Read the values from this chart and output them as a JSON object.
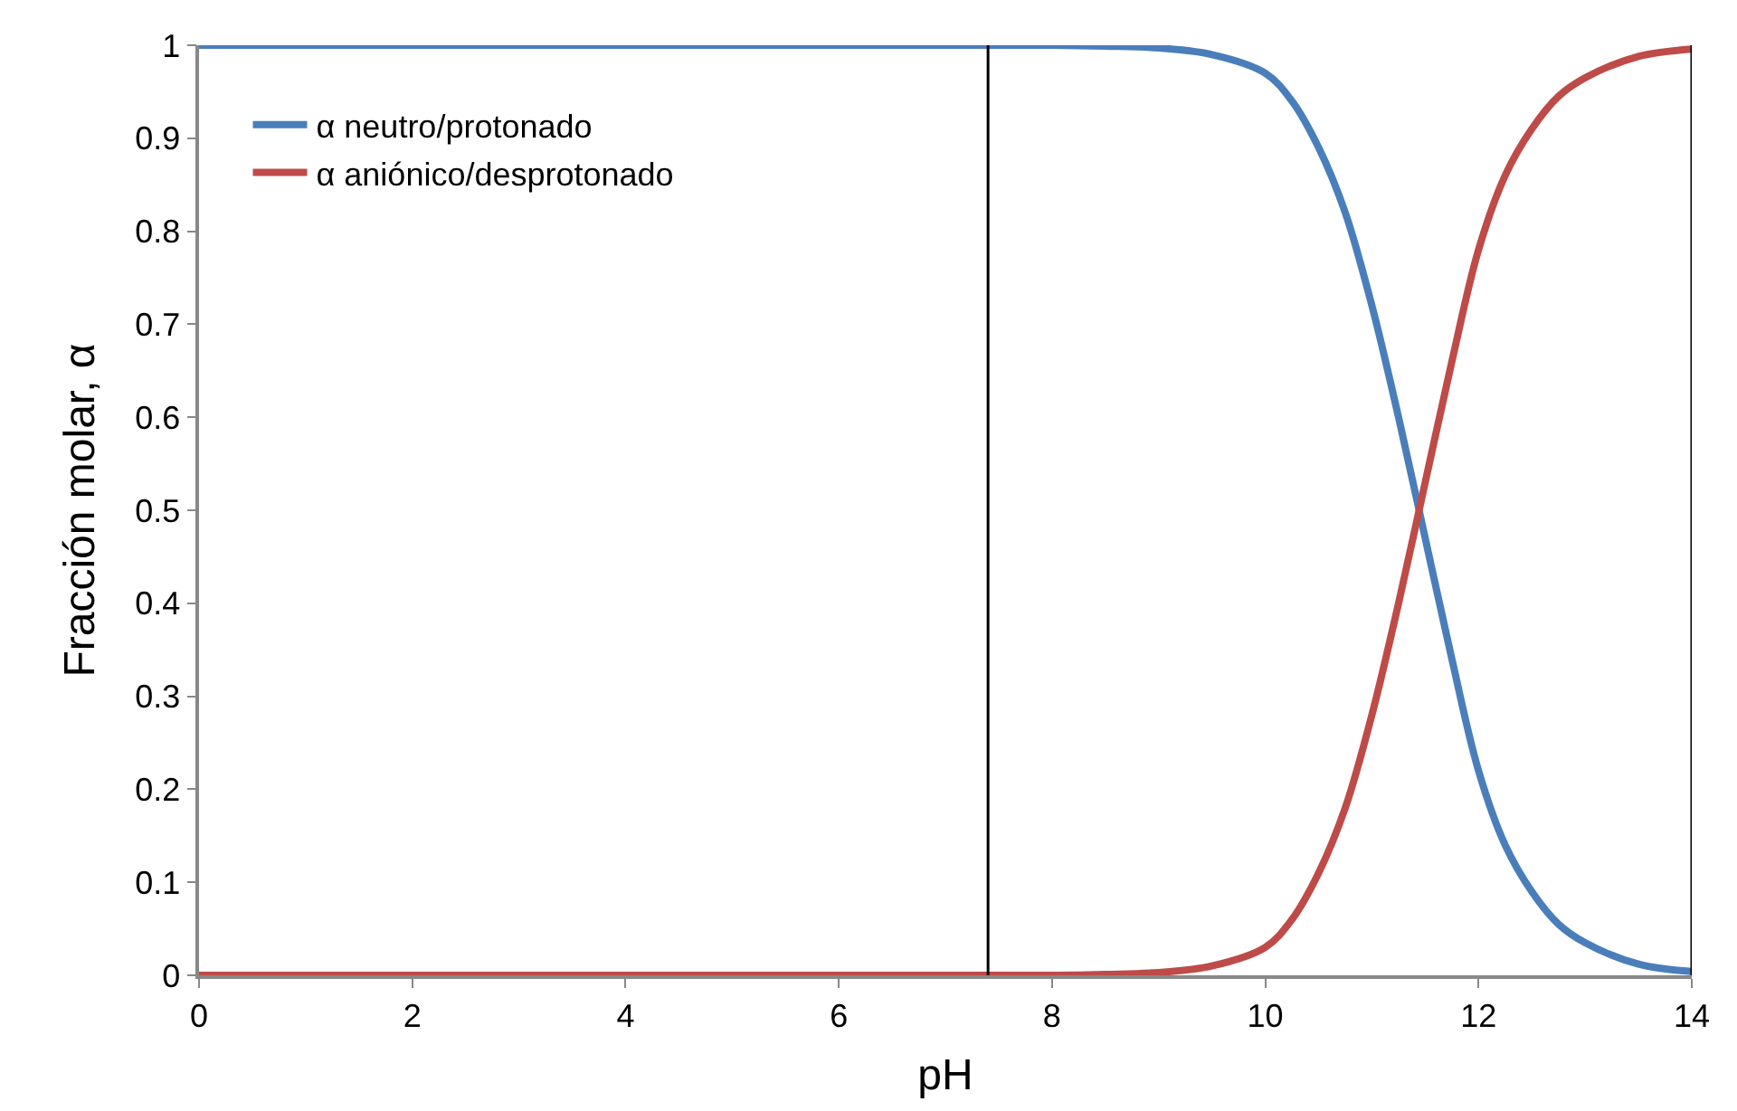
{
  "chart_data": {
    "type": "line",
    "xlabel": "pH",
    "ylabel": "Fracción molar, α",
    "x": [
      0,
      1,
      2,
      3,
      4,
      5,
      6,
      7,
      8,
      8.5,
      9,
      9.5,
      10,
      10.25,
      10.5,
      10.75,
      11,
      11.25,
      11.5,
      11.75,
      12,
      12.25,
      12.5,
      12.75,
      13,
      13.5,
      14
    ],
    "series": [
      {
        "name": "α neutro/protonado",
        "color": "#4a7ebb",
        "values": [
          1,
          1,
          1,
          1,
          1,
          1,
          1,
          1,
          1,
          0.999,
          0.997,
          0.99,
          0.97,
          0.94,
          0.89,
          0.82,
          0.72,
          0.6,
          0.47,
          0.34,
          0.22,
          0.14,
          0.09,
          0.055,
          0.035,
          0.012,
          0.004
        ]
      },
      {
        "name": "α aniónico/desprotonado",
        "color": "#be4b48",
        "values": [
          0,
          0,
          0,
          0,
          0,
          0,
          0,
          0,
          0,
          0.001,
          0.003,
          0.01,
          0.03,
          0.06,
          0.11,
          0.18,
          0.28,
          0.4,
          0.53,
          0.66,
          0.78,
          0.86,
          0.91,
          0.945,
          0.965,
          0.988,
          0.996
        ]
      }
    ],
    "ref_lines": [
      {
        "axis": "x",
        "value": 7.4,
        "color": "#000000"
      },
      {
        "axis": "x",
        "value": 14,
        "color": "#000000"
      }
    ],
    "xlim": [
      0,
      14
    ],
    "xticks": [
      0,
      2,
      4,
      6,
      8,
      10,
      12,
      14
    ],
    "ylim": [
      0,
      1
    ],
    "yticks": [
      0,
      0.1,
      0.2,
      0.3,
      0.4,
      0.5,
      0.6,
      0.7,
      0.8,
      0.9,
      1
    ],
    "legend": "top left",
    "marker": "none",
    "line_style": "solid"
  }
}
